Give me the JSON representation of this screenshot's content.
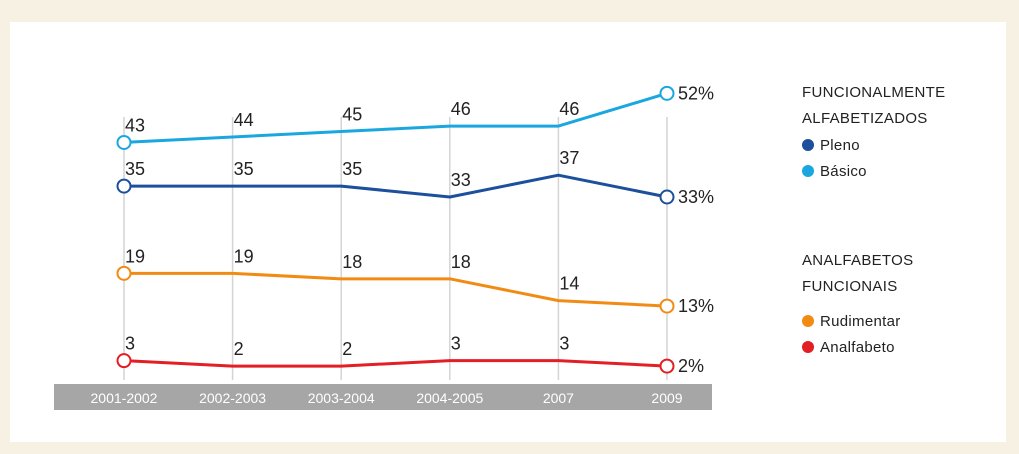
{
  "chart_data": {
    "type": "line",
    "categories": [
      "2001-2002",
      "2002-2003",
      "2003-2004",
      "2004-2005",
      "2007",
      "2009"
    ],
    "ylim": [
      0,
      55
    ],
    "grid": "vertical",
    "legend_position": "right",
    "series": [
      {
        "key": "basico",
        "name": "Básico",
        "group": "funcionais",
        "color": "#1aa7df",
        "values": [
          43,
          44,
          45,
          46,
          46,
          52
        ],
        "labels": [
          "43",
          "44",
          "45",
          "46",
          "46",
          "52%"
        ]
      },
      {
        "key": "pleno",
        "name": "Pleno",
        "group": "funcionais",
        "color": "#1c4f9c",
        "values": [
          35,
          35,
          35,
          33,
          37,
          33
        ],
        "labels": [
          "35",
          "35",
          "35",
          "33",
          "37",
          "33%"
        ]
      },
      {
        "key": "rudimentar",
        "name": "Rudimentar",
        "group": "analfabetos",
        "color": "#f28b14",
        "values": [
          19,
          19,
          18,
          18,
          14,
          13
        ],
        "labels": [
          "19",
          "19",
          "18",
          "18",
          "14",
          "13%"
        ]
      },
      {
        "key": "analfabeto",
        "name": "Analfabeto",
        "group": "analfabetos",
        "color": "#e31e24",
        "values": [
          3,
          2,
          2,
          3,
          3,
          2
        ],
        "labels": [
          "3",
          "2",
          "2",
          "3",
          "3",
          "2%"
        ]
      }
    ]
  },
  "legend": {
    "group1_line1": "FUNCIONALMENTE",
    "group1_line2": "ALFABETIZADOS",
    "group2_line1": "ANALFABETOS",
    "group2_line2": "FUNCIONAIS",
    "item_pleno": "Pleno",
    "item_basico": "Básico",
    "item_rudimentar": "Rudimentar",
    "item_analfabeto": "Analfabeto"
  },
  "colors": {
    "background": "#f6f1e3",
    "axis_bar": "#a6a6a6",
    "gridline": "#d4d4d4"
  }
}
